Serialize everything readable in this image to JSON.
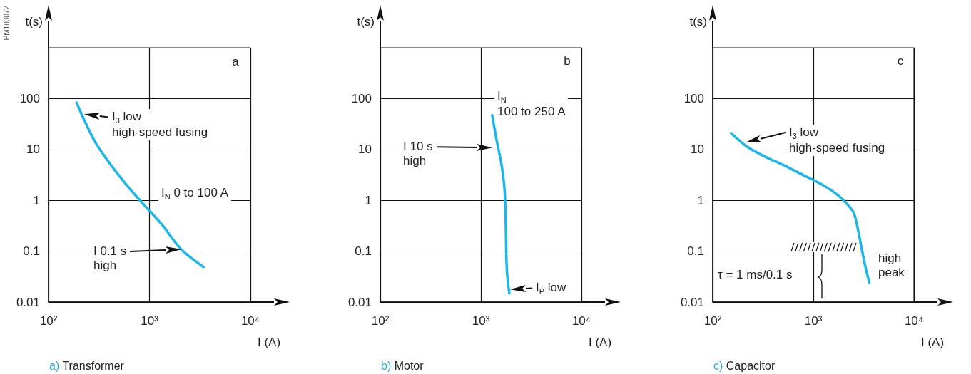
{
  "chart_data": [
    {
      "type": "line",
      "title": "a) Transformer",
      "xlabel": "I (A)",
      "ylabel": "t(s)",
      "log": "xy",
      "grid": true,
      "marker": "none",
      "line_style": "solid",
      "xlim": [
        100,
        10000
      ],
      "xticks": [
        {
          "value": 100,
          "label": "10²"
        },
        {
          "value": 1000,
          "label": "10³"
        },
        {
          "value": 10000,
          "label": "10⁴"
        }
      ],
      "ylim": [
        0.01,
        1000
      ],
      "yticks": [
        0.01,
        0.1,
        1,
        10,
        100
      ],
      "series": [
        {
          "color": "#1ab7ea",
          "x": [
            190,
            215,
            290,
            420,
            620,
            860,
            1320,
            2050,
            3430
          ],
          "values": [
            83,
            47,
            14,
            4.8,
            1.8,
            0.86,
            0.34,
            0.11,
            0.049
          ]
        }
      ],
      "annotations": [
        {
          "text": "I$_{3}$ low\nhigh-speed fusing",
          "x": 226,
          "y": 50
        },
        "I$_{N}$ 0 to 100 A",
        "I 0.1 s\nhigh",
        "a",
        "PM103072"
      ]
    },
    {
      "type": "line",
      "title": "b) Motor",
      "xlabel": "I (A)",
      "ylabel": "t(s)",
      "log": "xy",
      "grid": true,
      "marker": "none",
      "line_style": "solid",
      "xlim": [
        100,
        10000
      ],
      "xticks": [
        {
          "value": 100,
          "label": "10²"
        },
        {
          "value": 1000,
          "label": "10³"
        },
        {
          "value": 10000,
          "label": "10⁴"
        }
      ],
      "ylim": [
        0.01,
        1000
      ],
      "yticks": [
        0.01,
        0.1,
        1,
        10,
        100
      ],
      "series": [
        {
          "color": "#1ab7ea",
          "x": [
            1295,
            1445,
            1611,
            1720,
            1758,
            1778,
            1796,
            1846,
            1919
          ],
          "values": [
            47,
            14,
            4.8,
            1.6,
            0.56,
            0.19,
            0.064,
            0.027,
            0.015
          ]
        }
      ],
      "annotations": [
        "I$_{N}$\n100 to 250 A",
        "I 10 s\nhigh",
        {
          "text": "I$_{P}$ low",
          "x": 1950,
          "y": 0.018
        },
        "b"
      ]
    },
    {
      "type": "line",
      "title": "c) Capacitor",
      "xlabel": "I (A)",
      "ylabel": "t(s)",
      "log": "xy",
      "grid": true,
      "marker": "none",
      "line_style": "solid",
      "xlim": [
        100,
        10000
      ],
      "xticks": [
        {
          "value": 100,
          "label": "10²"
        },
        {
          "value": 1000,
          "label": "10³"
        },
        {
          "value": 10000,
          "label": "10⁴"
        }
      ],
      "ylim": [
        0.01,
        1000
      ],
      "yticks": [
        0.01,
        0.1,
        1,
        10,
        100
      ],
      "series": [
        {
          "color": "#1ab7ea",
          "x": [
            152,
            217,
            336,
            520,
            804,
            1244,
            1726,
            2147,
            2529,
            2820,
            3062,
            3321,
            3606
          ],
          "values": [
            21,
            11.5,
            7.1,
            4.8,
            3.1,
            2.0,
            1.3,
            0.86,
            0.56,
            0.23,
            0.099,
            0.046,
            0.024
          ]
        }
      ],
      "annotations": [
        "I$_{3}$ low\nhigh-speed fusing",
        "high\npeak",
        "τ = 1 ms/0.1 s",
        "c"
      ]
    }
  ]
}
